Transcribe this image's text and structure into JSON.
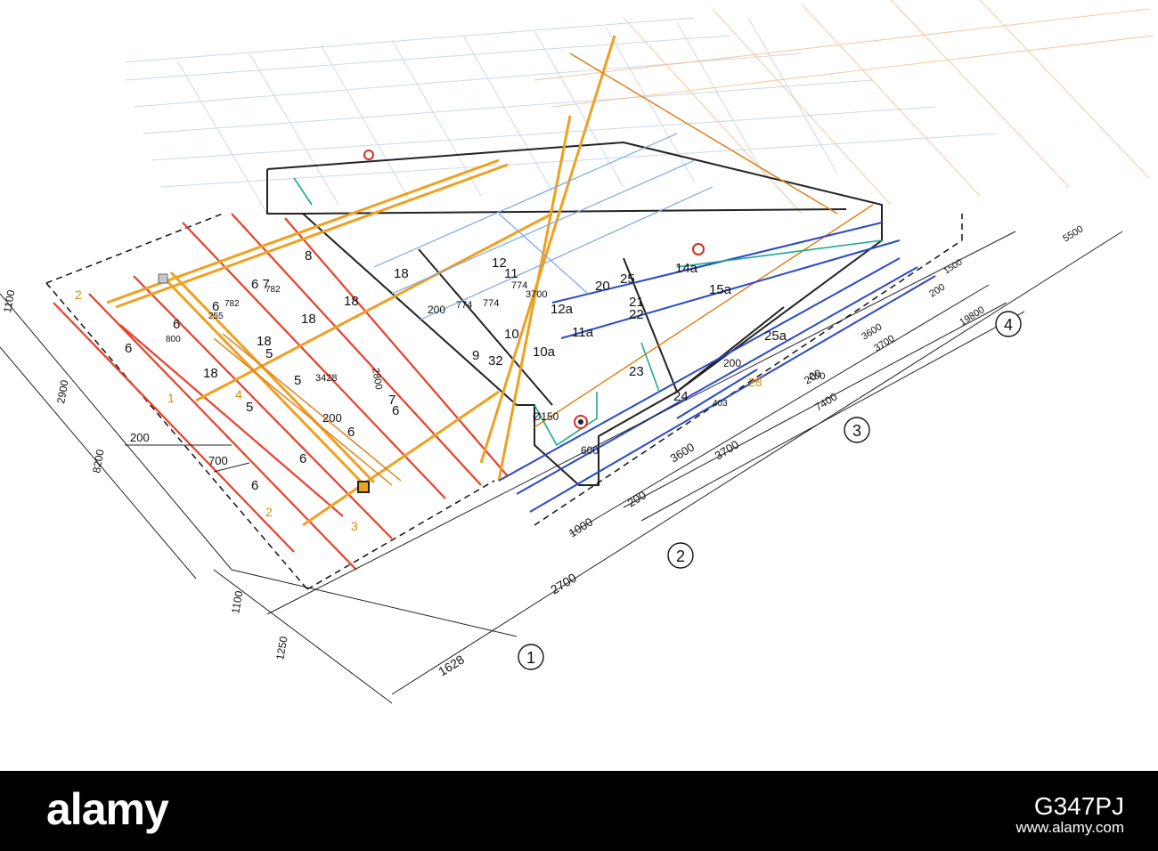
{
  "photo": {
    "subject_icon": "floor-plan-blueprint",
    "colors": {
      "ink": "#111111",
      "red_line": "#e8402a",
      "orange_line": "#f0a020",
      "blue_line": "#2848c8",
      "light_blue": "#7aa6e0",
      "teal_line": "#1aa890",
      "paper": "#ffffff"
    },
    "grid_axes": [
      "1",
      "2",
      "3",
      "4"
    ],
    "outer_dimensions": [
      "1628",
      "2700",
      "1000",
      "200",
      "3600",
      "3700",
      "7400",
      "200",
      "3600",
      "3700",
      "19800",
      "5500",
      "1500",
      "200"
    ],
    "left_dimensions": [
      "1100",
      "2900",
      "8200",
      "1100",
      "1250",
      "200",
      "700",
      "200"
    ],
    "interior_labels": [
      "6",
      "6",
      "6",
      "6",
      "6",
      "6",
      "6",
      "6 7",
      "782",
      "800",
      "255",
      "782",
      "18",
      "18",
      "18",
      "18",
      "18",
      "5",
      "5",
      "5",
      "3428",
      "200",
      "200",
      "774",
      "774",
      "774",
      "3700",
      "8",
      "9",
      "32",
      "10",
      "10a",
      "11a",
      "12a",
      "20",
      "25",
      "21",
      "22",
      "23",
      "24",
      "25a",
      "14a",
      "15a",
      "28",
      "Ø150",
      "600",
      "200",
      "403",
      "12",
      "11",
      "2800",
      "7"
    ],
    "pipe_markers": [
      "1",
      "2",
      "2",
      "3",
      "4"
    ]
  },
  "stock_bar": {
    "logo": "alamy",
    "image_id": "G347PJ",
    "url": "www.alamy.com"
  }
}
